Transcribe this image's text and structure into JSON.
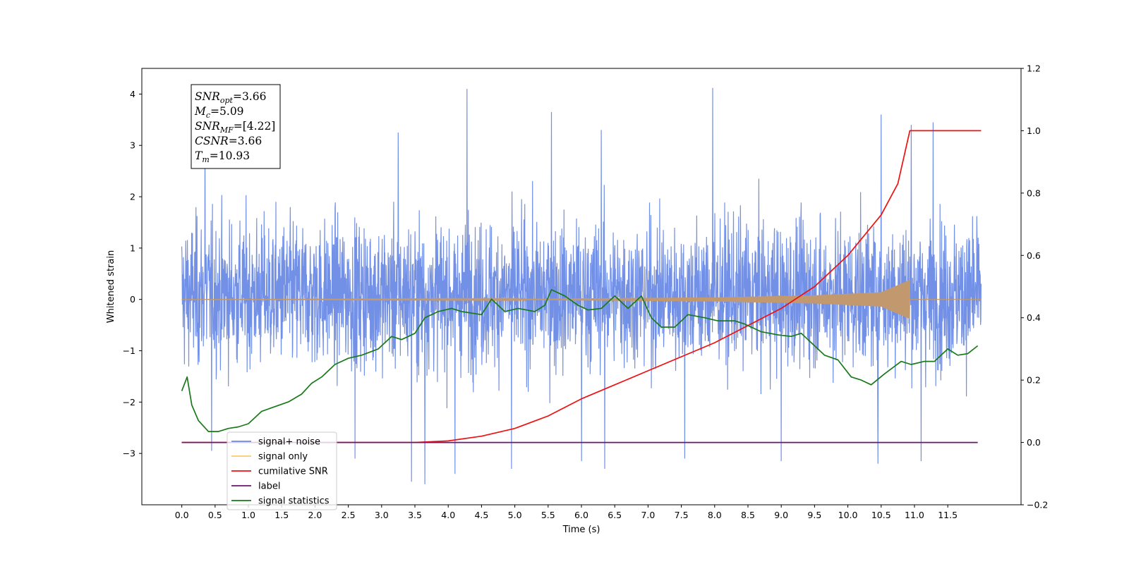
{
  "chart_data": {
    "type": "line",
    "xlabel": "Time (s)",
    "ylabel": "Whitened strain",
    "xlim": [
      -0.6,
      12.6
    ],
    "ylim": [
      -4.0,
      4.5
    ],
    "y2lim": [
      -0.2,
      1.2
    ],
    "x_ticks": [
      0.0,
      0.5,
      1.0,
      1.5,
      2.0,
      2.5,
      3.0,
      3.5,
      4.0,
      4.5,
      5.0,
      5.5,
      6.0,
      6.5,
      7.0,
      7.5,
      8.0,
      8.5,
      9.0,
      9.5,
      10.0,
      10.5,
      11.0,
      11.5
    ],
    "x_tick_labels": [
      "0.0",
      "0.5",
      "1.0",
      "1.5",
      "2.0",
      "2.5",
      "3.0",
      "3.5",
      "4.0",
      "4.5",
      "5.0",
      "5.5",
      "6.0",
      "6.5",
      "7.0",
      "7.5",
      "8.0",
      "8.5",
      "9.0",
      "9.5",
      "10.0",
      "10.5",
      "11.0",
      "11.5"
    ],
    "y_ticks": [
      -3,
      -2,
      -1,
      0,
      1,
      2,
      3,
      4
    ],
    "y_tick_labels": [
      "−3",
      "−2",
      "−1",
      "0",
      "1",
      "2",
      "3",
      "4"
    ],
    "y2_ticks": [
      -0.2,
      0.0,
      0.2,
      0.4,
      0.6,
      0.8,
      1.0,
      1.2
    ],
    "y2_tick_labels": [
      "−0.2",
      "0.0",
      "0.2",
      "0.4",
      "0.6",
      "0.8",
      "1.0",
      "1.2"
    ],
    "grid": false,
    "legend_placement": "lower-left",
    "annotation": {
      "lines": [
        {
          "main": "SNR",
          "sub": "opt",
          "rest": "=3.66"
        },
        {
          "main": "M",
          "sub": "c",
          "rest": "=5.09"
        },
        {
          "main": "SNR",
          "sub": "MF",
          "rest": "=[4.22]"
        },
        {
          "main": "CSNR",
          "sub": "",
          "rest": "=3.66"
        },
        {
          "main": "T",
          "sub": "m",
          "rest": "=10.93"
        }
      ]
    },
    "series": [
      {
        "name": "signal+ noise",
        "axis": "left",
        "color": "#6b8ae6",
        "kind": "noise",
        "x_range": [
          0.0,
          12.0
        ],
        "typical_range": [
          -2.1,
          2.3
        ],
        "peaks": [
          {
            "x": 4.28,
            "y": 4.1
          },
          {
            "x": 7.97,
            "y": 4.12
          },
          {
            "x": 5.55,
            "y": 3.65
          },
          {
            "x": 10.5,
            "y": 3.6
          },
          {
            "x": 10.95,
            "y": 3.4
          },
          {
            "x": 11.28,
            "y": 3.45
          },
          {
            "x": 3.25,
            "y": 3.25
          },
          {
            "x": 6.3,
            "y": 3.3
          },
          {
            "x": 0.35,
            "y": 3.25
          },
          {
            "x": 3.45,
            "y": -3.55
          },
          {
            "x": 3.65,
            "y": -3.6
          },
          {
            "x": 4.1,
            "y": -3.4
          },
          {
            "x": 4.95,
            "y": -3.3
          },
          {
            "x": 6.0,
            "y": -3.15
          },
          {
            "x": 6.35,
            "y": -3.3
          },
          {
            "x": 7.55,
            "y": -3.1
          },
          {
            "x": 9.0,
            "y": -3.15
          },
          {
            "x": 10.45,
            "y": -3.2
          },
          {
            "x": 11.1,
            "y": -3.15
          },
          {
            "x": 0.45,
            "y": -2.95
          },
          {
            "x": 2.6,
            "y": -3.1
          }
        ]
      },
      {
        "name": "signal only",
        "axis": "left",
        "color": "#c2996e",
        "kind": "chirp",
        "x_range": [
          0.0,
          11.0
        ],
        "merger_time": 10.93,
        "envelope": [
          [
            0.0,
            0.0
          ],
          [
            5.0,
            0.01
          ],
          [
            8.0,
            0.04
          ],
          [
            9.5,
            0.08
          ],
          [
            10.5,
            0.14
          ],
          [
            10.93,
            0.38
          ]
        ]
      },
      {
        "name": "cumilative SNR",
        "axis": "right",
        "color": "#ee1111",
        "x": [
          0.0,
          3.5,
          4.0,
          4.5,
          5.0,
          5.5,
          6.0,
          6.5,
          7.0,
          7.5,
          8.0,
          8.5,
          9.0,
          9.5,
          10.0,
          10.5,
          10.75,
          10.93,
          12.0
        ],
        "y": [
          0.0,
          0.0,
          0.005,
          0.02,
          0.045,
          0.085,
          0.14,
          0.185,
          0.23,
          0.275,
          0.32,
          0.375,
          0.43,
          0.5,
          0.6,
          0.73,
          0.83,
          1.0,
          1.0
        ]
      },
      {
        "name": "label",
        "axis": "right",
        "color": "#6e1670",
        "x": [
          0.0,
          11.95
        ],
        "y": [
          0.0,
          0.0
        ]
      },
      {
        "name": "signal statistics",
        "axis": "right",
        "color": "#1a7a1a",
        "x": [
          0.0,
          0.08,
          0.15,
          0.25,
          0.4,
          0.55,
          0.7,
          0.85,
          1.0,
          1.2,
          1.4,
          1.6,
          1.8,
          1.95,
          2.1,
          2.3,
          2.5,
          2.7,
          2.95,
          3.15,
          3.3,
          3.5,
          3.65,
          3.85,
          4.05,
          4.2,
          4.5,
          4.65,
          4.85,
          5.05,
          5.3,
          5.45,
          5.55,
          5.75,
          5.95,
          6.1,
          6.3,
          6.5,
          6.7,
          6.9,
          7.05,
          7.2,
          7.4,
          7.6,
          7.85,
          8.05,
          8.3,
          8.45,
          8.7,
          8.95,
          9.15,
          9.3,
          9.5,
          9.65,
          9.85,
          10.05,
          10.2,
          10.35,
          10.55,
          10.8,
          10.95,
          11.15,
          11.3,
          11.5,
          11.65,
          11.8,
          11.95
        ],
        "y": [
          0.165,
          0.21,
          0.12,
          0.07,
          0.035,
          0.035,
          0.045,
          0.05,
          0.06,
          0.1,
          0.115,
          0.13,
          0.155,
          0.19,
          0.21,
          0.25,
          0.27,
          0.28,
          0.3,
          0.34,
          0.33,
          0.35,
          0.4,
          0.42,
          0.43,
          0.42,
          0.41,
          0.46,
          0.42,
          0.43,
          0.42,
          0.44,
          0.49,
          0.47,
          0.44,
          0.425,
          0.43,
          0.47,
          0.43,
          0.47,
          0.4,
          0.37,
          0.37,
          0.41,
          0.4,
          0.39,
          0.39,
          0.38,
          0.355,
          0.345,
          0.34,
          0.35,
          0.31,
          0.28,
          0.265,
          0.21,
          0.2,
          0.185,
          0.22,
          0.26,
          0.25,
          0.26,
          0.26,
          0.3,
          0.28,
          0.285,
          0.31
        ]
      }
    ]
  }
}
